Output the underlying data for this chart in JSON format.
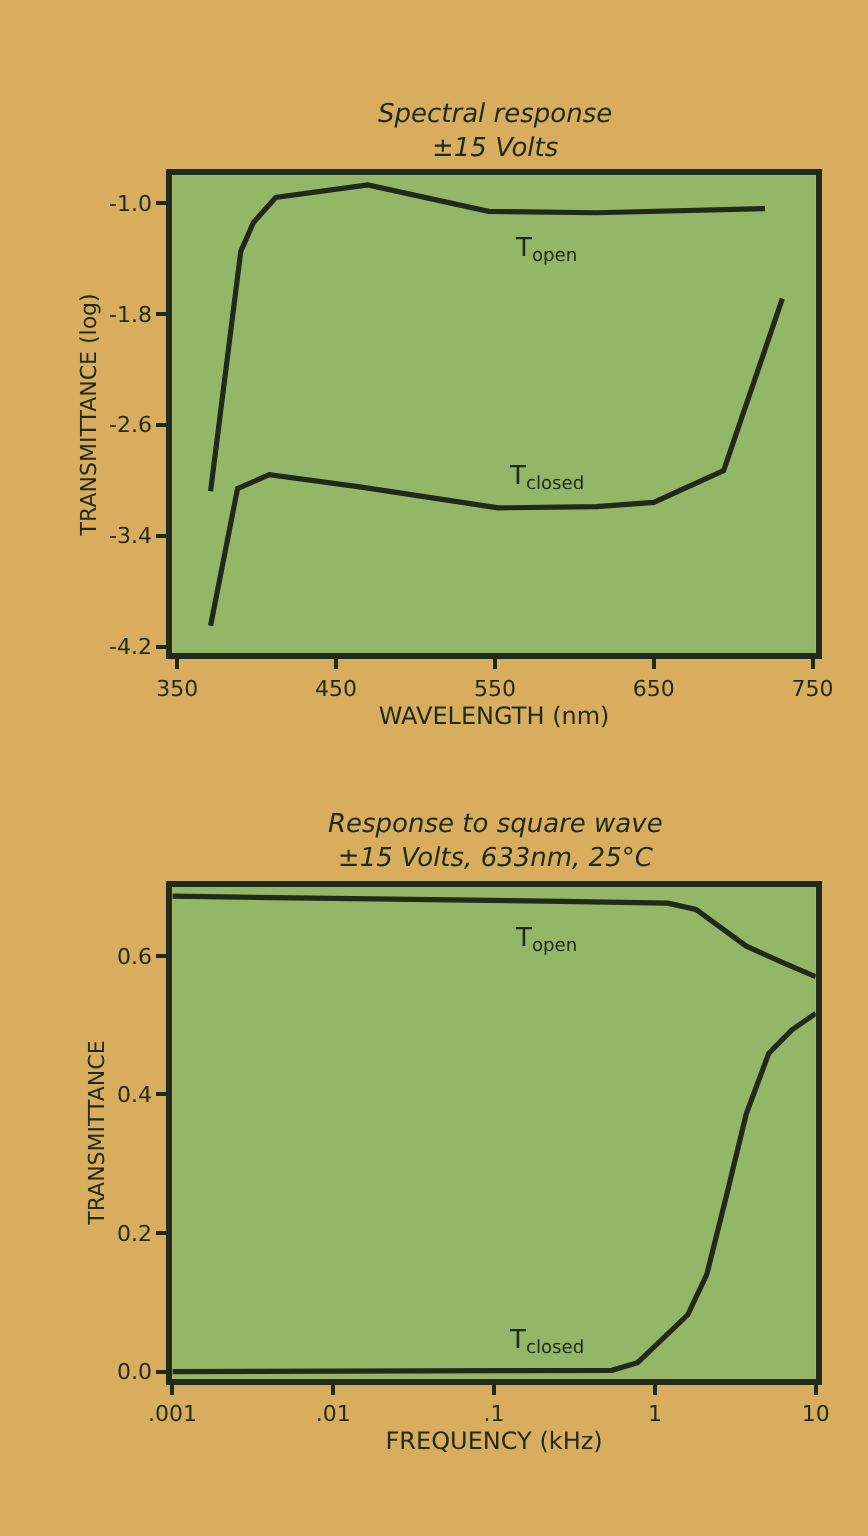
{
  "chart_data": [
    {
      "type": "line",
      "title": "Spectral response",
      "subtitle": "±15 Volts",
      "xlabel": "WAVELENGTH (nm)",
      "ylabel": "TRANSMITTANCE (log)",
      "xlim": [
        347,
        752
      ],
      "xticks": [
        350,
        450,
        550,
        650,
        750
      ],
      "ylim": [
        -4.25,
        -0.8
      ],
      "yticks": [
        {
          "value": -1.0,
          "label": "-1.0"
        },
        {
          "value": -1.8,
          "label": "-1.8"
        },
        {
          "value": -2.6,
          "label": "-2.6"
        },
        {
          "value": -3.4,
          "label": "-3.4"
        },
        {
          "value": -4.2,
          "label": "-4.2"
        }
      ],
      "series": [
        {
          "name": "T$_{open}$",
          "color": "#1f2a1a",
          "x": [
            371,
            390,
            398,
            412,
            470,
            546,
            614,
            720
          ],
          "values": [
            -3.08,
            -1.35,
            -1.14,
            -0.96,
            -0.87,
            -1.06,
            -1.07,
            -1.04
          ]
        },
        {
          "name": "T$_{closed}$",
          "color": "#1f2a1a",
          "x": [
            371,
            388,
            408,
            466,
            552,
            614,
            650,
            694,
            731
          ],
          "values": [
            -4.05,
            -3.06,
            -2.96,
            -3.05,
            -3.2,
            -3.19,
            -3.16,
            -2.93,
            -1.69
          ]
        }
      ],
      "grid": false,
      "marker": "none",
      "line_style": "solid"
    },
    {
      "type": "line",
      "title": "Response to square wave",
      "subtitle": "±15 Volts, 633nm, 25°C",
      "xlabel": "FREQUENCY (kHz)",
      "ylabel": "TRANSMITTANCE",
      "log": "x",
      "xlim": [
        0.001,
        10
      ],
      "xticks": [
        {
          "value": 0.001,
          "label": ".001"
        },
        {
          "value": 0.01,
          "label": ".01"
        },
        {
          "value": 0.1,
          "label": ".1"
        },
        1,
        10
      ],
      "ylim": [
        -0.01,
        0.7
      ],
      "yticks": [
        {
          "value": 0.0,
          "label": "0.0"
        },
        {
          "value": 0.2,
          "label": "0.2"
        },
        {
          "value": 0.4,
          "label": "0.4"
        },
        {
          "value": 0.6,
          "label": "0.6"
        }
      ],
      "series": [
        {
          "name": "T$_{open}$",
          "color": "#1f2a1a",
          "x": [
            0.001,
            0.21,
            1.2,
            1.8,
            3.7,
            6.4,
            10
          ],
          "values": [
            0.686,
            0.679,
            0.676,
            0.667,
            0.614,
            0.589,
            0.57
          ]
        },
        {
          "name": "T$_{closed}$",
          "color": "#1f2a1a",
          "x": [
            0.001,
            0.54,
            0.78,
            1.6,
            2.1,
            2.8,
            3.7,
            5.1,
            7.1,
            10
          ],
          "values": [
            0.0,
            0.002,
            0.013,
            0.082,
            0.14,
            0.256,
            0.372,
            0.459,
            0.493,
            0.517
          ]
        }
      ],
      "grid": false,
      "marker": "none",
      "line_style": "solid"
    }
  ]
}
